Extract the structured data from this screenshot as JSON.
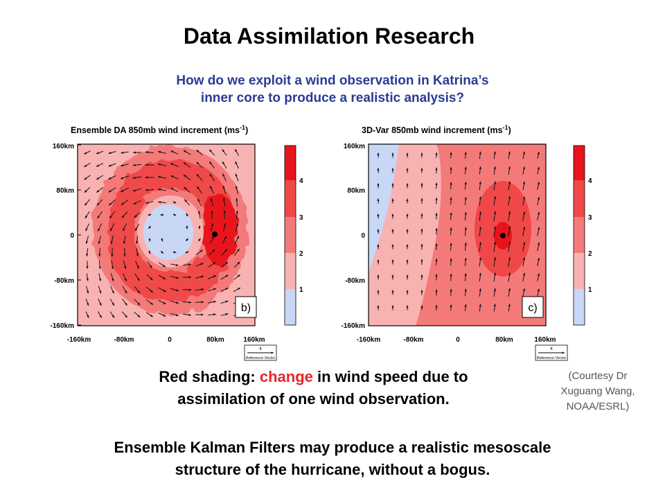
{
  "title": "Data Assimilation Research",
  "subtitle_lines": [
    "How do we exploit a wind observation in Katrina’s",
    "inner core to produce a realistic analysis?"
  ],
  "panels": [
    {
      "title_prefix": "Ensemble DA 850mb wind increment (ms",
      "title_sup": "-1",
      "title_suffix": ")",
      "label": "b)"
    },
    {
      "title_prefix": "3D-Var 850mb wind increment (ms",
      "title_sup": "-1",
      "title_suffix": ")",
      "label": "c)"
    }
  ],
  "axis": {
    "y_ticks": [
      "160km",
      "80km",
      "0",
      "-80km",
      "-160km"
    ],
    "x_ticks": [
      "-160km",
      "-80km",
      "0",
      "80km",
      "160km"
    ]
  },
  "colorbar": {
    "labels": [
      "4",
      "3",
      "2",
      "1"
    ],
    "colors": [
      "#e8141c",
      "#f04848",
      "#f47a7a",
      "#f9b2b2",
      "#c9d7f6"
    ]
  },
  "reference_vector": {
    "value": "4",
    "label": "Reference Vector"
  },
  "caption": {
    "part1": "Red shading: ",
    "highlight": "change",
    "part2": " in wind speed due to",
    "line2": "assimilation of one wind observation."
  },
  "credit_lines": [
    "(Courtesy Dr",
    "Xuguang Wang,",
    "NOAA/ESRL)"
  ],
  "conclusion_lines": [
    "Ensemble Kalman Filters may produce a realistic mesoscale",
    "structure of the hurricane, without a bogus."
  ],
  "colors": {
    "subtitle": "#2b3b93",
    "highlight": "#e8242a",
    "credit": "#555555"
  }
}
